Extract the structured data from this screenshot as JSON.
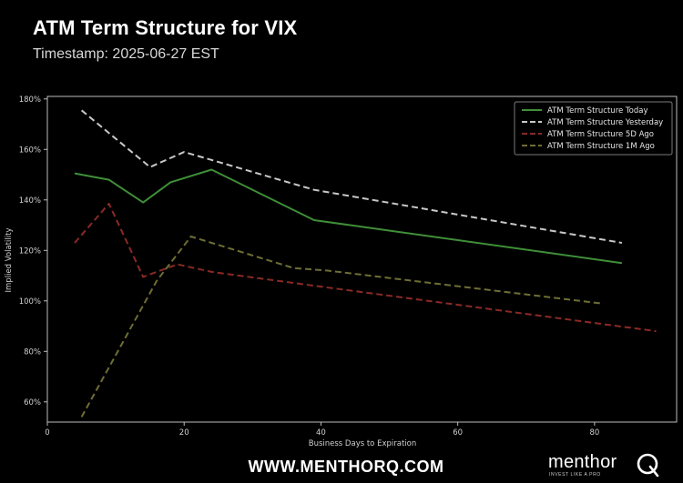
{
  "header": {
    "title": "ATM Term Structure for VIX",
    "subtitle": "Timestamp: 2025-06-27 EST"
  },
  "footer": {
    "url": "WWW.MENTHORQ.COM",
    "brand_name": "menthor",
    "brand_tagline": "INVEST LIKE A PRO",
    "brand_icon": "q-logo-icon"
  },
  "chart_data": {
    "type": "line",
    "xlabel": "Business Days to Expiration",
    "ylabel": "Implied Volatility",
    "xlim": [
      0,
      92
    ],
    "ylim": [
      52,
      181
    ],
    "xticks": [
      0,
      20,
      40,
      60,
      80
    ],
    "xtick_labels": [
      "0",
      "20",
      "40",
      "60",
      "80"
    ],
    "yticks": [
      60,
      80,
      100,
      120,
      140,
      160,
      180
    ],
    "ytick_labels": [
      "60%",
      "80%",
      "100%",
      "120%",
      "140%",
      "160%",
      "180%"
    ],
    "grid": false,
    "legend_position": "top-right",
    "series": [
      {
        "name": "ATM Term Structure Today",
        "color": "#3f8f38",
        "dash": "solid",
        "x": [
          4,
          9,
          14,
          18,
          24,
          39,
          84
        ],
        "y": [
          150.5,
          148,
          139,
          147,
          152,
          132,
          115
        ]
      },
      {
        "name": "ATM Term Structure Yesterday",
        "color": "#c8c8c8",
        "dash": "dashed",
        "x": [
          5,
          15,
          20,
          39,
          84
        ],
        "y": [
          175.5,
          153,
          159,
          144,
          123
        ]
      },
      {
        "name": "ATM Term Structure 5D Ago",
        "color": "#8a2a26",
        "dash": "dashed",
        "x": [
          4,
          9,
          14,
          19,
          24,
          39,
          89
        ],
        "y": [
          123,
          138.5,
          109.5,
          114.5,
          111.5,
          106,
          88
        ]
      },
      {
        "name": "ATM Term Structure 1M Ago",
        "color": "#6e6e34",
        "dash": "dashed",
        "x": [
          5,
          16,
          21,
          36,
          41,
          81
        ],
        "y": [
          54,
          108,
          125.5,
          113,
          112,
          99
        ]
      }
    ]
  }
}
